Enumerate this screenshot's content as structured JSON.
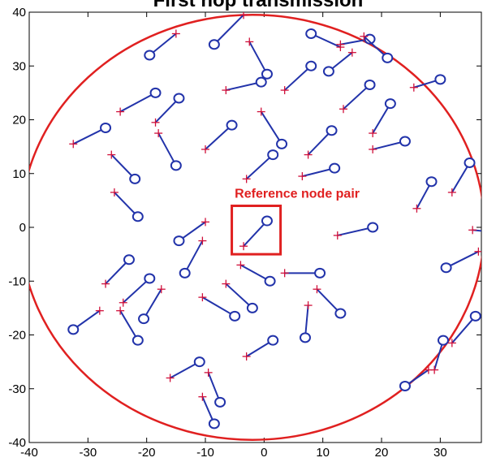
{
  "chart_data": {
    "type": "scatter",
    "title": "First hop transmission",
    "xlabel": "",
    "ylabel": "",
    "xlim": [
      -40,
      37
    ],
    "ylim": [
      -40,
      40
    ],
    "grid": false,
    "x_ticks": [
      -40,
      -30,
      -20,
      -10,
      0,
      10,
      20,
      30
    ],
    "y_ticks": [
      -40,
      -30,
      -20,
      -10,
      0,
      10,
      20,
      30,
      40
    ],
    "colors": {
      "link": "#2233aa",
      "node": "#2233aa",
      "plus": "#d0103a",
      "highlight": "#e02020",
      "circle": "#e02020"
    },
    "boundary_circle": {
      "cx": -2,
      "cy": 0,
      "r": 39.5
    },
    "reference_box": {
      "x0": -5.5,
      "x1": 2.8,
      "y0": -5,
      "y1": 4,
      "label": "Reference node pair"
    },
    "pairs": [
      {
        "p": [
          -3.5,
          39.5
        ],
        "o": [
          -8.5,
          34
        ]
      },
      {
        "p": [
          -15,
          36
        ],
        "o": [
          -19.5,
          32
        ]
      },
      {
        "p": [
          -2.5,
          34.5
        ],
        "o": [
          0.5,
          28.5
        ]
      },
      {
        "p": [
          -6.5,
          25.5
        ],
        "o": [
          -0.5,
          27
        ]
      },
      {
        "p": [
          3.5,
          25.5
        ],
        "o": [
          8,
          30
        ]
      },
      {
        "p": [
          13,
          33.5
        ],
        "o": [
          8,
          36
        ]
      },
      {
        "p": [
          13,
          34
        ],
        "o": [
          18,
          35
        ]
      },
      {
        "p": [
          17,
          35.5
        ],
        "o": [
          21,
          31.5
        ]
      },
      {
        "p": [
          15,
          32.5
        ],
        "o": [
          11,
          29
        ]
      },
      {
        "p": [
          13.5,
          22
        ],
        "o": [
          18,
          26.5
        ]
      },
      {
        "p": [
          25.5,
          26
        ],
        "o": [
          30,
          27.5
        ]
      },
      {
        "p": [
          -24.5,
          21.5
        ],
        "o": [
          -18.5,
          25
        ]
      },
      {
        "p": [
          -18.5,
          19.5
        ],
        "o": [
          -14.5,
          24
        ]
      },
      {
        "p": [
          -32.5,
          15.5
        ],
        "o": [
          -27,
          18.5
        ]
      },
      {
        "p": [
          -18,
          17.5
        ],
        "o": [
          -15,
          11.5
        ]
      },
      {
        "p": [
          -0.5,
          21.5
        ],
        "o": [
          3,
          15.5
        ]
      },
      {
        "p": [
          -10,
          14.5
        ],
        "o": [
          -5.5,
          19
        ]
      },
      {
        "p": [
          -3,
          9
        ],
        "o": [
          1.5,
          13.5
        ]
      },
      {
        "p": [
          7.5,
          13.5
        ],
        "o": [
          11.5,
          18
        ]
      },
      {
        "p": [
          18.5,
          17.5
        ],
        "o": [
          21.5,
          23
        ]
      },
      {
        "p": [
          18.5,
          14.5
        ],
        "o": [
          24,
          16
        ]
      },
      {
        "p": [
          6.5,
          9.5
        ],
        "o": [
          12,
          11
        ]
      },
      {
        "p": [
          -26,
          13.5
        ],
        "o": [
          -22,
          9
        ]
      },
      {
        "p": [
          -25.5,
          6.5
        ],
        "o": [
          -21.5,
          2
        ]
      },
      {
        "p": [
          26,
          3.5
        ],
        "o": [
          28.5,
          8.5
        ]
      },
      {
        "p": [
          32,
          6.5
        ],
        "o": [
          35,
          12
        ]
      },
      {
        "p": [
          -10,
          1
        ],
        "o": [
          -14.5,
          -2.5
        ]
      },
      {
        "p": [
          -10.5,
          -2.5
        ],
        "o": [
          -13.5,
          -8.5
        ]
      },
      {
        "p": [
          -3.5,
          -3.5
        ],
        "o": [
          0.5,
          1.2
        ]
      },
      {
        "p": [
          12.5,
          -1.5
        ],
        "o": [
          18.5,
          0
        ]
      },
      {
        "p": [
          35.5,
          -0.5
        ],
        "o": [
          40,
          -1
        ]
      },
      {
        "p": [
          36.5,
          -4.5
        ],
        "o": [
          31,
          -7.5
        ]
      },
      {
        "p": [
          -4,
          -7
        ],
        "o": [
          1,
          -10
        ]
      },
      {
        "p": [
          3.5,
          -8.5
        ],
        "o": [
          9.5,
          -8.5
        ]
      },
      {
        "p": [
          -27,
          -10.5
        ],
        "o": [
          -23,
          -6
        ]
      },
      {
        "p": [
          -24,
          -14
        ],
        "o": [
          -19.5,
          -9.5
        ]
      },
      {
        "p": [
          -17.5,
          -11.5
        ],
        "o": [
          -20.5,
          -17
        ]
      },
      {
        "p": [
          -24.5,
          -15.5
        ],
        "o": [
          -21.5,
          -21
        ]
      },
      {
        "p": [
          -28,
          -15.5
        ],
        "o": [
          -32.5,
          -19
        ]
      },
      {
        "p": [
          -6.5,
          -10.5
        ],
        "o": [
          -2,
          -15
        ]
      },
      {
        "p": [
          -10.5,
          -13
        ],
        "o": [
          -5,
          -16.5
        ]
      },
      {
        "p": [
          9,
          -11.5
        ],
        "o": [
          13,
          -16
        ]
      },
      {
        "p": [
          7.5,
          -14.5
        ],
        "o": [
          7,
          -20.5
        ]
      },
      {
        "p": [
          -3,
          -24
        ],
        "o": [
          1.5,
          -21
        ]
      },
      {
        "p": [
          -16,
          -28
        ],
        "o": [
          -11,
          -25
        ]
      },
      {
        "p": [
          -9.5,
          -27
        ],
        "o": [
          -7.5,
          -32.5
        ]
      },
      {
        "p": [
          -10.5,
          -31.5
        ],
        "o": [
          -8.5,
          -36.5
        ]
      },
      {
        "p": [
          28,
          -26.5
        ],
        "o": [
          24,
          -29.5
        ]
      },
      {
        "p": [
          29,
          -26.5
        ],
        "o": [
          30.5,
          -21
        ]
      },
      {
        "p": [
          32,
          -21.5
        ],
        "o": [
          36,
          -16.5
        ]
      }
    ]
  }
}
